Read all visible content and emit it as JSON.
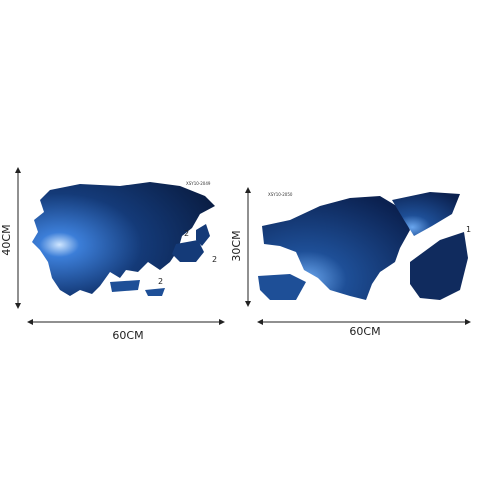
{
  "left_panel": {
    "width_label": "60CM",
    "height_label": "40CM",
    "code": "XSY10-2049",
    "part_marks": [
      "2",
      "2",
      "2"
    ]
  },
  "right_panel": {
    "width_label": "60CM",
    "height_label": "30CM",
    "code": "XSY10-2050",
    "part_marks": [
      "1"
    ]
  }
}
